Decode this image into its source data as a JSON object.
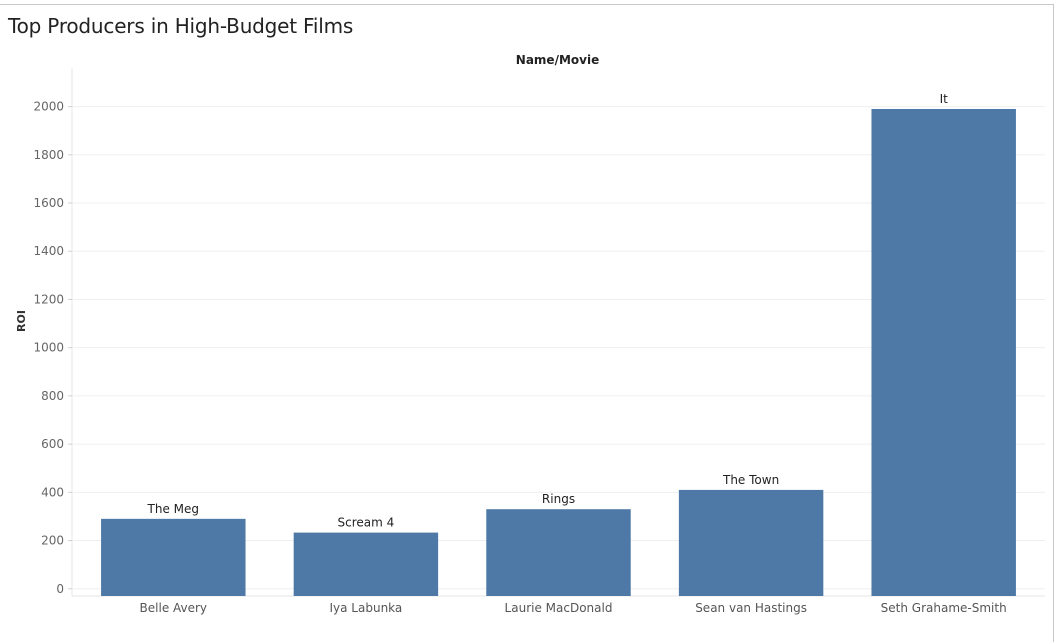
{
  "chart_data": {
    "type": "bar",
    "title": "Top Producers in High-Budget Films",
    "header": "Name/Movie",
    "ylabel": "ROI",
    "xlabel": "",
    "categories": [
      "Belle Avery",
      "Iya Labunka",
      "Laurie MacDonald",
      "Sean van Hastings",
      "Seth Grahame-Smith"
    ],
    "bar_labels": [
      "The Meg",
      "Scream 4",
      "Rings",
      "The Town",
      "It"
    ],
    "values": [
      290,
      233,
      330,
      410,
      1990
    ],
    "ylim": [
      -30,
      2160
    ],
    "yticks": [
      0,
      200,
      400,
      600,
      800,
      1000,
      1200,
      1400,
      1600,
      1800,
      2000
    ],
    "grid": true,
    "bar_color": "#4e79a7"
  }
}
